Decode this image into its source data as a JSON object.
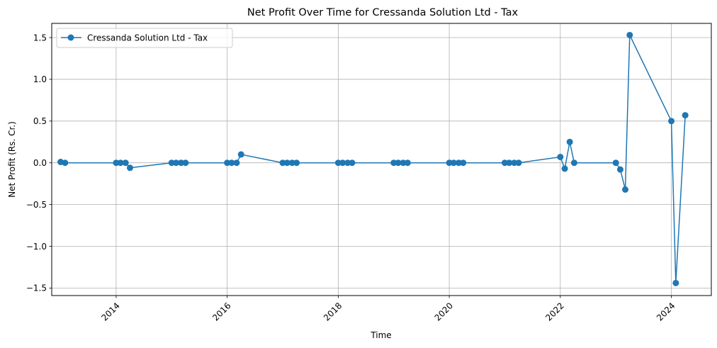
{
  "chart_data": {
    "type": "line",
    "title": "Net Profit Over Time for Cressanda Solution Ltd - Tax",
    "xlabel": "Time",
    "ylabel": "Net Profit (Rs. Cr.)",
    "xlim": [
      2012.84,
      2024.72
    ],
    "ylim": [
      -1.59,
      1.67
    ],
    "x_ticks": [
      2014,
      2016,
      2018,
      2020,
      2022,
      2024
    ],
    "x_tick_labels": [
      "2014",
      "2016",
      "2018",
      "2020",
      "2022",
      "2024"
    ],
    "y_ticks": [
      -1.5,
      -1.0,
      -0.5,
      0.0,
      0.5,
      1.0,
      1.5
    ],
    "y_tick_labels": [
      "−1.5",
      "−1.0",
      "−0.5",
      "0.0",
      "0.5",
      "1.0",
      "1.5"
    ],
    "grid": true,
    "legend_position": "upper-left",
    "color": "#1f77b4",
    "series": [
      {
        "name": "Cressanda Solution Ltd - Tax",
        "points": [
          {
            "x": 2013.0,
            "y": 0.01
          },
          {
            "x": 2013.08,
            "y": 0.0
          },
          {
            "x": 2014.0,
            "y": 0.0
          },
          {
            "x": 2014.08,
            "y": 0.0
          },
          {
            "x": 2014.17,
            "y": 0.0
          },
          {
            "x": 2014.25,
            "y": -0.06
          },
          {
            "x": 2015.0,
            "y": 0.0
          },
          {
            "x": 2015.08,
            "y": 0.0
          },
          {
            "x": 2015.17,
            "y": 0.0
          },
          {
            "x": 2015.25,
            "y": 0.0
          },
          {
            "x": 2016.0,
            "y": 0.0
          },
          {
            "x": 2016.08,
            "y": 0.0
          },
          {
            "x": 2016.17,
            "y": 0.0
          },
          {
            "x": 2016.25,
            "y": 0.1
          },
          {
            "x": 2017.0,
            "y": 0.0
          },
          {
            "x": 2017.08,
            "y": 0.0
          },
          {
            "x": 2017.17,
            "y": 0.0
          },
          {
            "x": 2017.25,
            "y": 0.0
          },
          {
            "x": 2018.0,
            "y": 0.0
          },
          {
            "x": 2018.08,
            "y": 0.0
          },
          {
            "x": 2018.17,
            "y": 0.0
          },
          {
            "x": 2018.25,
            "y": 0.0
          },
          {
            "x": 2019.0,
            "y": 0.0
          },
          {
            "x": 2019.08,
            "y": 0.0
          },
          {
            "x": 2019.17,
            "y": 0.0
          },
          {
            "x": 2019.25,
            "y": 0.0
          },
          {
            "x": 2020.0,
            "y": 0.0
          },
          {
            "x": 2020.08,
            "y": 0.0
          },
          {
            "x": 2020.17,
            "y": 0.0
          },
          {
            "x": 2020.25,
            "y": 0.0
          },
          {
            "x": 2021.0,
            "y": 0.0
          },
          {
            "x": 2021.08,
            "y": 0.0
          },
          {
            "x": 2021.17,
            "y": 0.0
          },
          {
            "x": 2021.25,
            "y": 0.0
          },
          {
            "x": 2022.0,
            "y": 0.07
          },
          {
            "x": 2022.08,
            "y": -0.07
          },
          {
            "x": 2022.17,
            "y": 0.25
          },
          {
            "x": 2022.25,
            "y": 0.0
          },
          {
            "x": 2023.0,
            "y": 0.0
          },
          {
            "x": 2023.08,
            "y": -0.08
          },
          {
            "x": 2023.17,
            "y": -0.32
          },
          {
            "x": 2023.25,
            "y": 1.53
          },
          {
            "x": 2024.0,
            "y": 0.5
          },
          {
            "x": 2024.08,
            "y": -1.44
          },
          {
            "x": 2024.25,
            "y": 0.57
          }
        ]
      }
    ]
  }
}
